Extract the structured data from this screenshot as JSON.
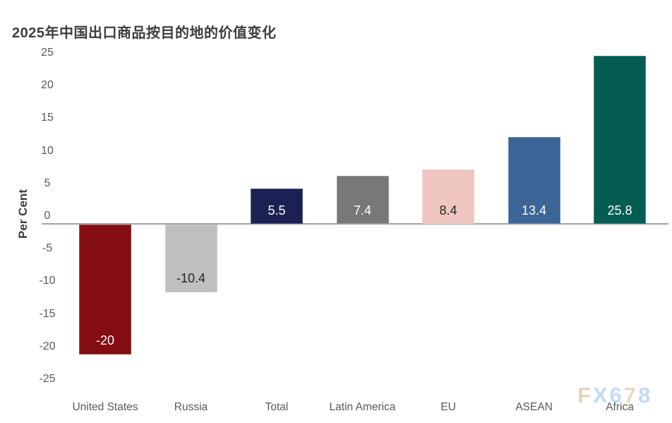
{
  "page": {
    "title": "2025年中国出口商品按目的地的价值变化"
  },
  "watermark": {
    "text": "FX678",
    "letters": [
      {
        "ch": "F",
        "color": "#e8d4be"
      },
      {
        "ch": "X",
        "color": "#c6d9f2"
      },
      {
        "ch": "6",
        "color": "#c6d9f2"
      },
      {
        "ch": "7",
        "color": "#ecd9c3"
      },
      {
        "ch": "8",
        "color": "#c6d9f2"
      }
    ]
  },
  "chart_data": {
    "type": "bar",
    "title": "2025年中国出口商品按目的地的价值变化",
    "xlabel": "",
    "ylabel": "Per Cent",
    "ylim": [
      -25,
      25
    ],
    "ytick_interval": 5,
    "yticks": [
      25,
      20,
      15,
      10,
      5,
      0,
      -5,
      -10,
      -15,
      -20,
      -25
    ],
    "grid": false,
    "legend": "none",
    "categories": [
      "United States",
      "Russia",
      "Total",
      "Latin America",
      "EU",
      "ASEAN",
      "Africa"
    ],
    "values": [
      -20,
      -10.4,
      5.5,
      7.4,
      8.4,
      13.4,
      25.8
    ],
    "value_labels": [
      "-20",
      "-10.4",
      "5.5",
      "7.4",
      "8.4",
      "13.4",
      "25.8"
    ],
    "bar_colors": [
      "#830d10",
      "#bfbfbf",
      "#1b2153",
      "#787878",
      "#eec5c1",
      "#3b6596",
      "#055c53"
    ],
    "value_label_colors": [
      "#ffffff",
      "#262626",
      "#ffffff",
      "#ffffff",
      "#262626",
      "#ffffff",
      "#ffffff"
    ],
    "axis_color": "#a2a2a2",
    "tick_color": "#595959",
    "title_color": "#3d3d3d"
  }
}
